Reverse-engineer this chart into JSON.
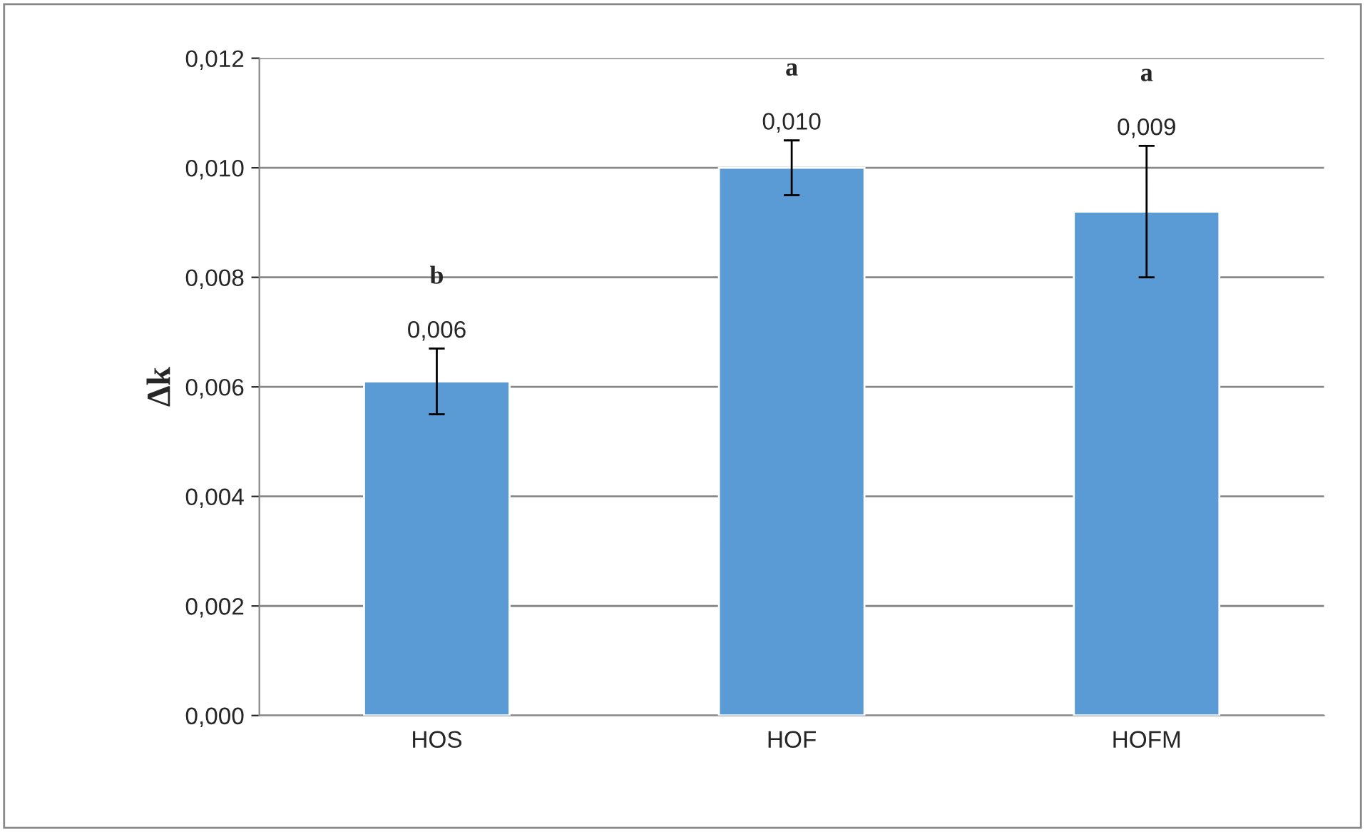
{
  "chart_data": {
    "type": "bar",
    "ylabel": "Δk",
    "categories": [
      "HOS",
      "HOF",
      "HOFM"
    ],
    "series": [
      {
        "color": "#5b9bd5",
        "values": [
          0.0061,
          0.01,
          0.0092
        ],
        "errors": [
          0.0006,
          0.0005,
          0.0012
        ],
        "value_labels": [
          "0,006",
          "0,010",
          "0,009"
        ]
      }
    ],
    "annotations": [
      "b",
      "a",
      "a"
    ],
    "ylim": [
      0,
      0.012
    ],
    "yticks": [
      {
        "value": 0,
        "label": "0,000"
      },
      {
        "value": 0.002,
        "label": "0,002"
      },
      {
        "value": 0.004,
        "label": "0,004"
      },
      {
        "value": 0.006,
        "label": "0,006"
      },
      {
        "value": 0.008,
        "label": "0,008"
      },
      {
        "value": 0.01,
        "label": "0,010"
      },
      {
        "value": 0.012,
        "label": "0,012"
      }
    ],
    "grid": "y",
    "legend": false
  }
}
